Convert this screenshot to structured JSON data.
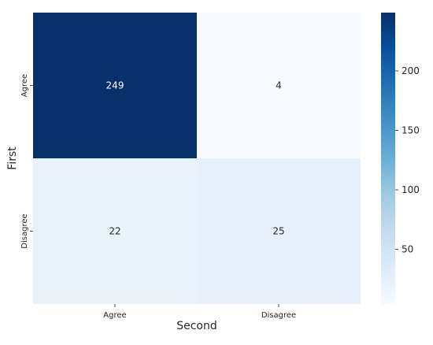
{
  "chart_data": {
    "type": "heatmap",
    "xlabel": "Second",
    "ylabel": "First",
    "x_categories": [
      "Agree",
      "Disagree"
    ],
    "y_categories": [
      "Agree",
      "Disagree"
    ],
    "values": [
      [
        249,
        4
      ],
      [
        22,
        25
      ]
    ],
    "cell_labels": [
      [
        "249",
        "4"
      ],
      [
        "22",
        "25"
      ]
    ],
    "colormap": "Blues",
    "color_low": "#f7fbff",
    "color_high": "#08306b",
    "vmin": 4,
    "vmax": 249,
    "colorbar_ticks": [
      "50",
      "100",
      "150",
      "200"
    ],
    "colorbar_tick_values": [
      50,
      100,
      150,
      200
    ]
  }
}
